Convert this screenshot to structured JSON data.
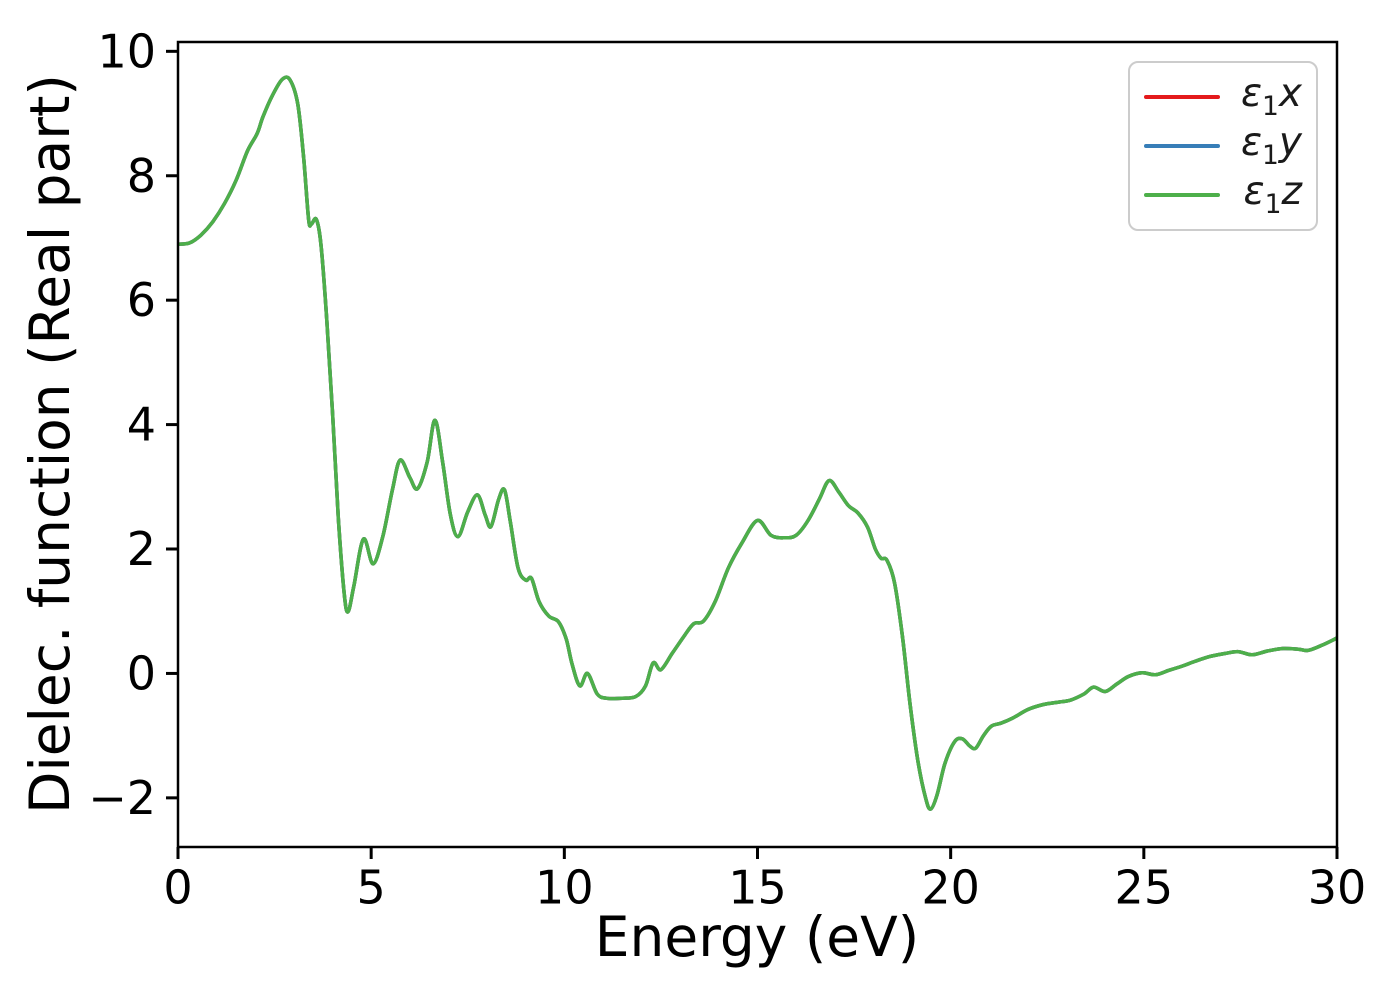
{
  "figure": {
    "background": "#ffffff",
    "spine_color": "#000000"
  },
  "chart_data": {
    "type": "line",
    "title": "",
    "xlabel": "Energy (eV)",
    "ylabel": "Dielec. function (Real part)",
    "xlim": [
      0,
      30
    ],
    "ylim": [
      -2.79,
      10.15
    ],
    "xticks": [
      0,
      5,
      10,
      15,
      20,
      25,
      30
    ],
    "yticks": [
      -2,
      0,
      2,
      4,
      6,
      8,
      10
    ],
    "grid": false,
    "legend_position": "upper right",
    "series_overlap": "all three series are identical in the plot; the green curve drawn last covers the red and blue ones",
    "x": [
      0,
      0.3,
      0.6,
      0.9,
      1.2,
      1.5,
      1.8,
      2.05,
      2.2,
      2.45,
      2.7,
      2.9,
      3.1,
      3.25,
      3.38,
      3.45,
      3.58,
      3.7,
      3.85,
      4.0,
      4.15,
      4.3,
      4.4,
      4.55,
      4.8,
      5.05,
      5.3,
      5.55,
      5.75,
      6.0,
      6.2,
      6.45,
      6.65,
      6.85,
      7.05,
      7.25,
      7.5,
      7.75,
      7.95,
      8.1,
      8.3,
      8.45,
      8.6,
      8.8,
      9.0,
      9.15,
      9.35,
      9.6,
      9.85,
      10.05,
      10.2,
      10.4,
      10.6,
      10.85,
      11.1,
      11.5,
      11.85,
      12.1,
      12.3,
      12.5,
      12.8,
      13.1,
      13.35,
      13.6,
      13.9,
      14.25,
      14.6,
      15.0,
      15.35,
      15.7,
      16.0,
      16.3,
      16.6,
      16.85,
      17.1,
      17.35,
      17.6,
      17.85,
      18.05,
      18.2,
      18.35,
      18.55,
      18.75,
      18.95,
      19.15,
      19.35,
      19.48,
      19.65,
      19.85,
      20.1,
      20.3,
      20.5,
      20.65,
      20.85,
      21.05,
      21.3,
      21.6,
      22.0,
      22.4,
      22.8,
      23.1,
      23.45,
      23.7,
      24.0,
      24.3,
      24.6,
      24.95,
      25.3,
      25.65,
      26.0,
      26.35,
      26.7,
      27.1,
      27.45,
      27.8,
      28.2,
      28.6,
      29.0,
      29.25,
      29.6,
      30.0
    ],
    "shared_y": [
      6.9,
      6.92,
      7.05,
      7.26,
      7.55,
      7.92,
      8.4,
      8.68,
      8.95,
      9.3,
      9.55,
      9.54,
      9.15,
      8.3,
      7.3,
      7.22,
      7.3,
      6.9,
      5.7,
      4.2,
      2.5,
      1.3,
      0.99,
      1.4,
      2.16,
      1.76,
      2.2,
      2.95,
      3.43,
      3.15,
      2.97,
      3.4,
      4.07,
      3.4,
      2.55,
      2.2,
      2.6,
      2.87,
      2.55,
      2.36,
      2.8,
      2.95,
      2.45,
      1.7,
      1.5,
      1.53,
      1.15,
      0.92,
      0.83,
      0.55,
      0.15,
      -0.2,
      0.0,
      -0.33,
      -0.4,
      -0.4,
      -0.37,
      -0.2,
      0.17,
      0.06,
      0.33,
      0.6,
      0.8,
      0.84,
      1.15,
      1.7,
      2.1,
      2.46,
      2.22,
      2.18,
      2.22,
      2.45,
      2.8,
      3.1,
      2.92,
      2.7,
      2.58,
      2.35,
      2.0,
      1.85,
      1.82,
      1.45,
      0.6,
      -0.5,
      -1.4,
      -2.0,
      -2.18,
      -1.95,
      -1.45,
      -1.1,
      -1.05,
      -1.17,
      -1.2,
      -1.0,
      -0.85,
      -0.8,
      -0.72,
      -0.58,
      -0.5,
      -0.46,
      -0.43,
      -0.33,
      -0.22,
      -0.29,
      -0.17,
      -0.05,
      0.01,
      -0.02,
      0.05,
      0.12,
      0.2,
      0.27,
      0.32,
      0.35,
      0.3,
      0.36,
      0.4,
      0.39,
      0.37,
      0.45,
      0.57
    ],
    "series": [
      {
        "name": "ε1x",
        "color": "#e41a1c",
        "y": "shared_y",
        "label_parts": {
          "symbol": "ε",
          "subscript": "1",
          "component": "x"
        }
      },
      {
        "name": "ε1y",
        "color": "#377eb8",
        "y": "shared_y",
        "label_parts": {
          "symbol": "ε",
          "subscript": "1",
          "component": "y"
        }
      },
      {
        "name": "ε1z",
        "color": "#4daf4a",
        "y": "shared_y",
        "label_parts": {
          "symbol": "ε",
          "subscript": "1",
          "component": "z"
        }
      }
    ]
  }
}
